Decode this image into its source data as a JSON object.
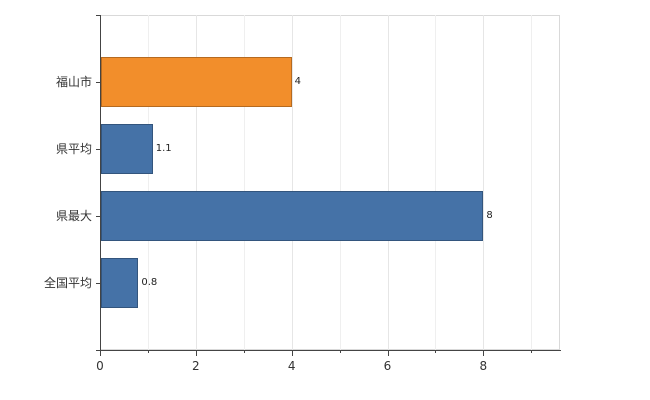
{
  "chart_data": {
    "type": "bar",
    "orientation": "horizontal",
    "title": "",
    "xlabel": "",
    "ylabel": "",
    "categories": [
      "福山市",
      "県平均",
      "県最大",
      "全国平均"
    ],
    "values": [
      4,
      1.1,
      8,
      0.8
    ],
    "value_labels": [
      "4",
      "1.1",
      "8",
      "0.8"
    ],
    "bar_colors": [
      "#f28e2b",
      "#4572a7",
      "#4572a7",
      "#4572a7"
    ],
    "x_ticks": [
      0,
      2,
      4,
      6,
      8
    ],
    "x_tick_labels": [
      "0",
      "2",
      "4",
      "6",
      "8"
    ],
    "x_minor_ticks": [
      1,
      3,
      5,
      7,
      9
    ],
    "xlim": [
      0,
      9.6
    ],
    "grid": true,
    "legend": "none",
    "background_color": "#ffffff",
    "axis_color": "#444444",
    "gridline_color": "#e6e6e6"
  }
}
